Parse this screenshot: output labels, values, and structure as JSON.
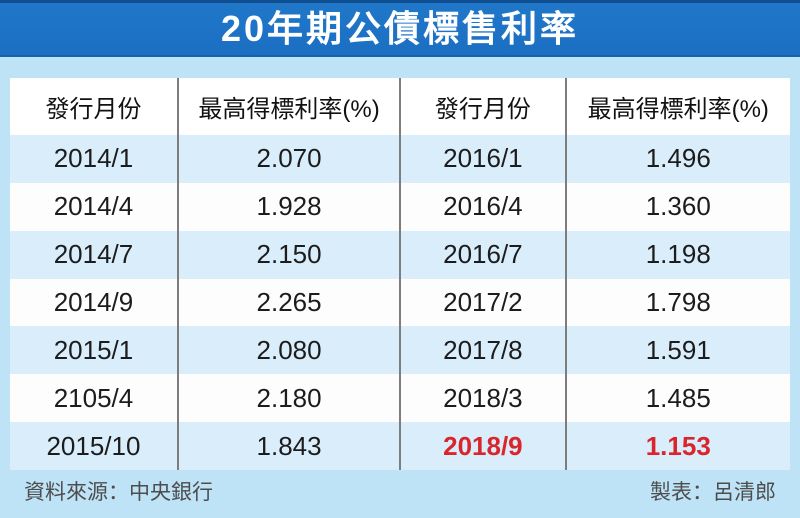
{
  "title": "20年期公債標售利率",
  "colors": {
    "title_bar": "#1b6fc3",
    "page_background": "#bfe3f6",
    "row_alternate": "#d9edfa",
    "row_plain": "#fdfdfd",
    "divider": "#7d7d7d",
    "highlight_red": "#d9262c",
    "cell_text": "#1c1c1c",
    "footer_text": "#4d4d4d"
  },
  "table": {
    "columns": [
      "發行月份",
      "最高得標利率(%)",
      "發行月份",
      "最高得標利率(%)"
    ],
    "rows": [
      {
        "cells": [
          "2014/1",
          "2.070",
          "2016/1",
          "1.496"
        ],
        "highlight_right": false
      },
      {
        "cells": [
          "2014/4",
          "1.928",
          "2016/4",
          "1.360"
        ],
        "highlight_right": false
      },
      {
        "cells": [
          "2014/7",
          "2.150",
          "2016/7",
          "1.198"
        ],
        "highlight_right": false
      },
      {
        "cells": [
          "2014/9",
          "2.265",
          "2017/2",
          "1.798"
        ],
        "highlight_right": false
      },
      {
        "cells": [
          "2015/1",
          "2.080",
          "2017/8",
          "1.591"
        ],
        "highlight_right": false
      },
      {
        "cells": [
          "2105/4",
          "2.180",
          "2018/3",
          "1.485"
        ],
        "highlight_right": false
      },
      {
        "cells": [
          "2015/10",
          "1.843",
          "2018/9",
          "1.153"
        ],
        "highlight_right": true
      }
    ]
  },
  "footer": {
    "source": "資料來源：中央銀行",
    "credit": "製表：呂清郎"
  },
  "chart_data": {
    "type": "table",
    "title": "20年期公債標售利率",
    "columns": [
      "發行月份",
      "最高得標利率(%)",
      "發行月份",
      "最高得標利率(%)"
    ],
    "series": [
      {
        "name": "最高得標利率(%)",
        "x": [
          "2014/1",
          "2014/4",
          "2014/7",
          "2014/9",
          "2015/1",
          "2105/4",
          "2015/10",
          "2016/1",
          "2016/4",
          "2016/7",
          "2017/2",
          "2017/8",
          "2018/3",
          "2018/9"
        ],
        "values": [
          2.07,
          1.928,
          2.15,
          2.265,
          2.08,
          2.18,
          1.843,
          1.496,
          1.36,
          1.198,
          1.798,
          1.591,
          1.485,
          1.153
        ]
      }
    ],
    "annotations": [
      "2018/9 與 1.153 以紅色粗體強調"
    ],
    "source": "資料來源：中央銀行",
    "credit": "製表：呂清郎"
  }
}
